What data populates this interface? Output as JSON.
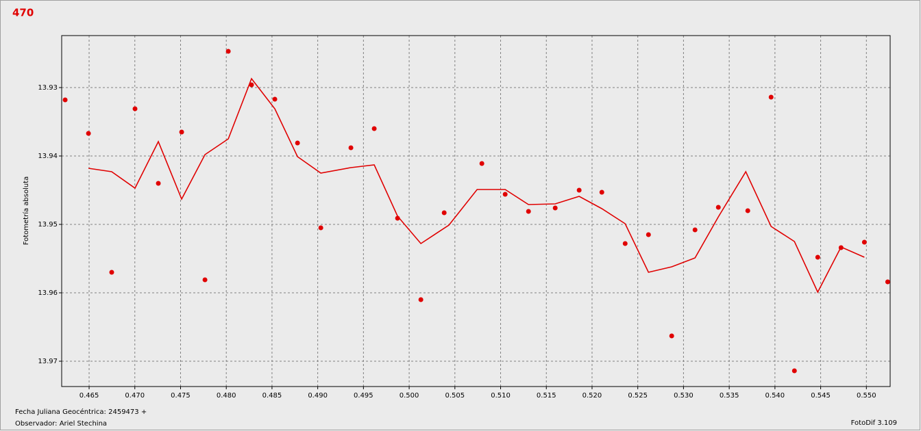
{
  "chart_data": {
    "type": "scatter",
    "title": "470",
    "y_label": "Fotometría absoluta",
    "footer_left": [
      "Fecha Juliana Geocéntrica: 2459473 +",
      "Observador: Ariel Stechina"
    ],
    "footer_right": "FotoDif 3.109",
    "xlim": [
      0.462,
      0.5526
    ],
    "ylim": [
      13.9224,
      13.9737
    ],
    "y_inverted": true,
    "grid": true,
    "xticks": [
      0.465,
      {
        "value": 0.47,
        "label": "0.470"
      },
      0.475,
      {
        "value": 0.48,
        "label": "0.480"
      },
      0.485,
      {
        "value": 0.49,
        "label": "0.490"
      },
      0.495,
      {
        "value": 0.5,
        "label": "0.500"
      },
      0.505,
      {
        "value": 0.51,
        "label": "0.510"
      },
      0.515,
      {
        "value": 0.52,
        "label": "0.520"
      },
      0.525,
      {
        "value": 0.53,
        "label": "0.530"
      },
      0.535,
      {
        "value": 0.54,
        "label": "0.540"
      },
      0.545,
      {
        "value": 0.55,
        "label": "0.550"
      }
    ],
    "yticks": [
      13.93,
      13.94,
      13.95,
      13.96,
      13.97
    ],
    "series": [
      {
        "type": "scatter",
        "color": "#e00000",
        "x": [
          0.46238,
          0.46493,
          0.46747,
          0.47002,
          0.47257,
          0.47512,
          0.47767,
          0.48022,
          0.48276,
          0.48531,
          0.48779,
          0.49034,
          0.49363,
          0.49618,
          0.49873,
          0.50128,
          0.50383,
          0.50795,
          0.5105,
          0.51305,
          0.51597,
          0.51859,
          0.52107,
          0.52362,
          0.52617,
          0.52871,
          0.53126,
          0.53381,
          0.53703,
          0.53958,
          0.54213,
          0.54468,
          0.54723,
          0.54978,
          0.55233
        ],
        "values": [
          13.9318,
          13.9367,
          13.957,
          13.9331,
          13.944,
          13.9365,
          13.9581,
          13.9247,
          13.9296,
          13.9317,
          13.9381,
          13.9505,
          13.9388,
          13.936,
          13.9491,
          13.961,
          13.9483,
          13.9411,
          13.9456,
          13.9481,
          13.9476,
          13.945,
          13.9453,
          13.9528,
          13.9515,
          13.9663,
          13.9508,
          13.9475,
          13.948,
          13.9314,
          13.9714,
          13.9548,
          13.9534,
          13.9526,
          13.9584
        ]
      },
      {
        "type": "line",
        "color": "#e00000",
        "x": [
          0.46493,
          0.46747,
          0.47002,
          0.47257,
          0.47512,
          0.47767,
          0.48022,
          0.48276,
          0.48531,
          0.48779,
          0.49034,
          0.49363,
          0.49618,
          0.49873,
          0.50128,
          0.50435,
          0.50743,
          0.5105,
          0.51305,
          0.51597,
          0.51859,
          0.52107,
          0.52362,
          0.52617,
          0.52871,
          0.53126,
          0.53381,
          0.53681,
          0.53958,
          0.54213,
          0.54468,
          0.54723,
          0.54978
        ],
        "values": [
          13.9418,
          13.9423,
          13.9447,
          13.9379,
          13.9463,
          13.9398,
          13.9375,
          13.9287,
          13.9331,
          13.9401,
          13.9425,
          13.9417,
          13.9413,
          13.9488,
          13.9528,
          13.9501,
          13.9449,
          13.9449,
          13.9471,
          13.947,
          13.9459,
          13.9477,
          13.9499,
          13.957,
          13.9562,
          13.9549,
          13.9489,
          13.9423,
          13.9503,
          13.9525,
          13.9599,
          13.9533,
          13.9548
        ]
      }
    ]
  }
}
